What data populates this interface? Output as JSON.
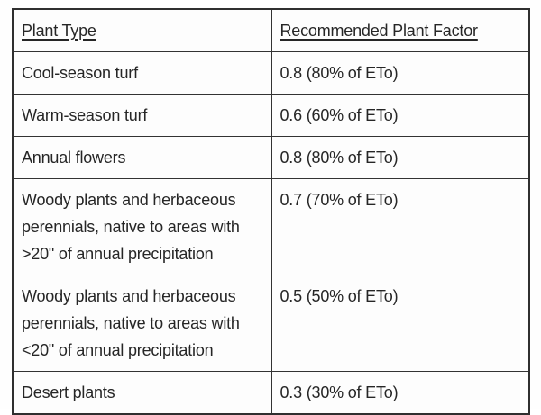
{
  "table": {
    "headers": {
      "plant_type": "Plant Type",
      "factor": "Recommended Plant Factor"
    },
    "rows": [
      {
        "plant_type": "Cool-season turf",
        "factor": "0.8 (80% of ETo)"
      },
      {
        "plant_type": "Warm-season turf",
        "factor": "0.6 (60% of ETo)"
      },
      {
        "plant_type": "Annual flowers",
        "factor": "0.8 (80% of ETo)"
      },
      {
        "plant_type": "Woody plants and herbaceous perennials, native to areas with >20\" of annual precipitation",
        "factor": "0.7 (70% of ETo)"
      },
      {
        "plant_type": "Woody plants and herbaceous perennials, native to areas with <20\" of annual precipitation",
        "factor": "0.5 (50% of ETo)"
      },
      {
        "plant_type": "Desert plants",
        "factor": "0.3 (30% of ETo)"
      }
    ],
    "colors": {
      "border": "#2f2f2f",
      "text": "#262626",
      "background": "#fdfdfd"
    }
  }
}
